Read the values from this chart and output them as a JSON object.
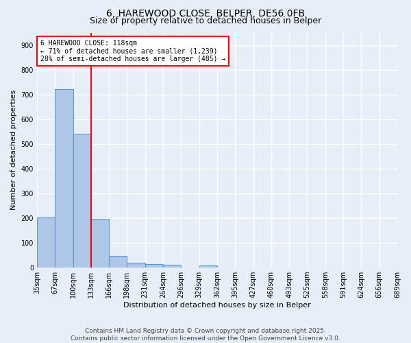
{
  "title_line1": "6, HAREWOOD CLOSE, BELPER, DE56 0FB",
  "title_line2": "Size of property relative to detached houses in Belper",
  "xlabel": "Distribution of detached houses by size in Belper",
  "ylabel": "Number of detached properties",
  "bar_values": [
    204,
    720,
    540,
    197,
    48,
    20,
    14,
    10,
    0,
    8,
    0,
    0,
    0,
    0,
    0,
    0,
    0,
    0,
    0,
    0
  ],
  "bar_labels": [
    "35sqm",
    "67sqm",
    "100sqm",
    "133sqm",
    "166sqm",
    "198sqm",
    "231sqm",
    "264sqm",
    "296sqm",
    "329sqm",
    "362sqm",
    "395sqm",
    "427sqm",
    "460sqm",
    "493sqm",
    "525sqm",
    "558sqm",
    "591sqm",
    "624sqm",
    "656sqm",
    "689sqm"
  ],
  "bar_color": "#aec6e8",
  "bar_edge_color": "#5b9bd5",
  "vline_x": 3,
  "vline_color": "red",
  "annotation_text": "6 HAREWOOD CLOSE: 118sqm\n← 71% of detached houses are smaller (1,239)\n28% of semi-detached houses are larger (485) →",
  "annotation_box_color": "white",
  "annotation_box_edge": "red",
  "ylim": [
    0,
    950
  ],
  "yticks": [
    0,
    100,
    200,
    300,
    400,
    500,
    600,
    700,
    800,
    900
  ],
  "background_color": "#e8eef8",
  "grid_color": "white",
  "footer_line1": "Contains HM Land Registry data © Crown copyright and database right 2025.",
  "footer_line2": "Contains public sector information licensed under the Open Government Licence v3.0.",
  "title_fontsize": 10,
  "subtitle_fontsize": 9,
  "ylabel_fontsize": 8,
  "xlabel_fontsize": 8,
  "tick_fontsize": 7,
  "footer_fontsize": 6.5
}
